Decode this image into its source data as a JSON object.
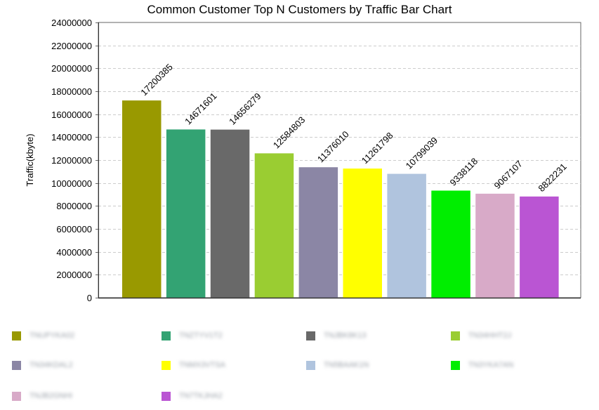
{
  "chart_data": {
    "type": "bar",
    "title": "Common Customer Top N Customers by Traffic Bar Chart",
    "xlabel": "",
    "ylabel": "Traffic(kbyte)",
    "ylim": [
      0,
      24000000
    ],
    "yticks": [
      0,
      2000000,
      4000000,
      6000000,
      8000000,
      10000000,
      12000000,
      14000000,
      16000000,
      18000000,
      20000000,
      22000000,
      24000000
    ],
    "grid": true,
    "legend_position": "bottom",
    "categories": [
      "TNUPYKA02",
      "TNZTYV1T2",
      "TNJBK8K13",
      "TN34HHT2J",
      "TN34KDAL2",
      "TNMX3VTSA",
      "TN5BAAK1N",
      "TN3YKA7AN",
      "TNJB2GNHI",
      "TN7TKJHA2"
    ],
    "values": [
      17200385,
      14671601,
      14656279,
      12584803,
      11376010,
      11261798,
      10799039,
      9338118,
      9067107,
      8822231
    ],
    "colors": [
      "#999900",
      "#33a373",
      "#696969",
      "#9acd32",
      "#8b86a5",
      "#ffff00",
      "#b0c4de",
      "#00ee00",
      "#d8aac8",
      "#ba55d3"
    ]
  }
}
